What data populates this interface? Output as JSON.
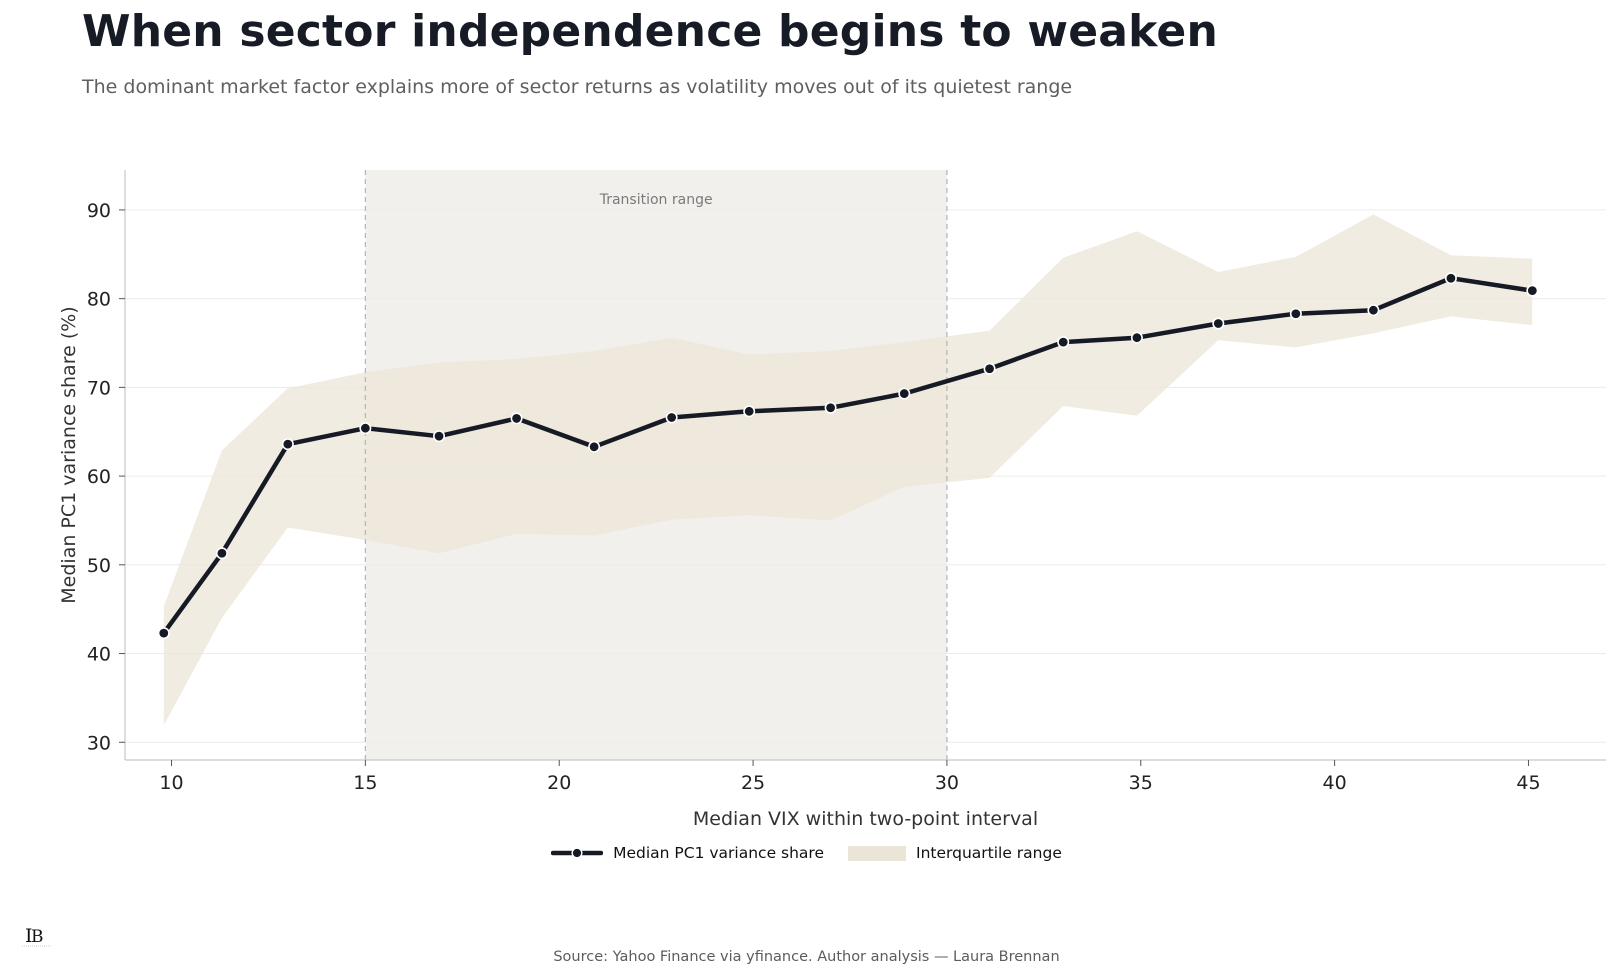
{
  "header": {
    "title": "When sector independence begins to weaken",
    "subtitle": "The dominant market factor explains more of sector returns as volatility moves out of its quietest range"
  },
  "footer": {
    "source": "Source: Yahoo Finance via yfinance. Author analysis — Laura Brennan"
  },
  "colors": {
    "line": "#151a24",
    "band": "#ece6d8",
    "transition_shade": "#f2f0ec",
    "transition_border": "#b8b8b8",
    "grid": "#ececec",
    "axis": "#c8c8c8"
  },
  "chart_data": {
    "type": "line",
    "title": "",
    "xlabel": "Median VIX within two-point interval",
    "ylabel": "Median PC1 variance share (%)",
    "xlim": [
      8.8,
      47
    ],
    "ylim": [
      28,
      94.5
    ],
    "xticks": [
      10,
      15,
      20,
      25,
      30,
      35,
      40,
      45
    ],
    "yticks": [
      30,
      40,
      50,
      60,
      70,
      80,
      90
    ],
    "grid": "horizontal",
    "legend_placement": "bottom-center",
    "annotation": {
      "label": "Transition range",
      "x_start": 15,
      "x_end": 30
    },
    "x": [
      9.8,
      11.3,
      13.0,
      15.0,
      16.9,
      18.9,
      20.9,
      22.9,
      24.9,
      27.0,
      28.9,
      31.1,
      33.0,
      34.9,
      37.0,
      39.0,
      41.0,
      43.0,
      45.1
    ],
    "series": [
      {
        "name": "Median PC1 variance share",
        "kind": "line",
        "values": [
          42.3,
          51.3,
          63.6,
          65.4,
          64.5,
          66.5,
          63.3,
          66.6,
          67.3,
          67.7,
          69.3,
          72.1,
          75.1,
          75.6,
          77.2,
          78.3,
          78.7,
          82.3,
          80.9
        ]
      },
      {
        "name": "Interquartile range",
        "kind": "band",
        "lower": [
          31.9,
          44.0,
          54.2,
          52.8,
          51.3,
          53.5,
          53.3,
          55.1,
          55.6,
          55.0,
          58.8,
          59.8,
          67.9,
          66.8,
          75.3,
          74.5,
          76.1,
          78.0,
          77.0
        ],
        "upper": [
          45.3,
          62.9,
          69.9,
          71.7,
          72.8,
          73.2,
          74.1,
          75.6,
          73.7,
          74.1,
          75.1,
          76.4,
          84.6,
          87.6,
          83.0,
          84.7,
          89.5,
          84.9,
          84.5
        ]
      }
    ]
  }
}
